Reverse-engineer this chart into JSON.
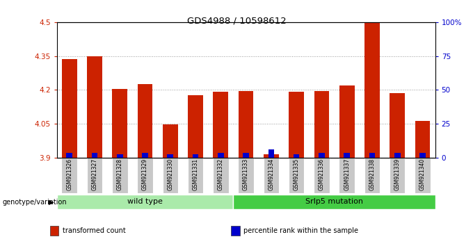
{
  "title": "GDS4988 / 10598612",
  "samples": [
    "GSM921326",
    "GSM921327",
    "GSM921328",
    "GSM921329",
    "GSM921330",
    "GSM921331",
    "GSM921332",
    "GSM921333",
    "GSM921334",
    "GSM921335",
    "GSM921336",
    "GSM921337",
    "GSM921338",
    "GSM921339",
    "GSM921340"
  ],
  "red_values": [
    4.335,
    4.348,
    4.205,
    4.225,
    4.048,
    4.175,
    4.19,
    4.195,
    3.915,
    4.19,
    4.195,
    4.218,
    4.495,
    4.185,
    4.062
  ],
  "blue_heights": [
    0.02,
    0.02,
    0.015,
    0.02,
    0.015,
    0.015,
    0.02,
    0.02,
    0.035,
    0.015,
    0.02,
    0.02,
    0.02,
    0.02,
    0.02
  ],
  "y_min": 3.9,
  "y_max": 4.5,
  "y_ticks": [
    3.9,
    4.05,
    4.2,
    4.35,
    4.5
  ],
  "y_tick_labels": [
    "3.9",
    "4.05",
    "4.2",
    "4.35",
    "4.5"
  ],
  "right_y_ticks": [
    0,
    25,
    50,
    75,
    100
  ],
  "right_y_tick_labels": [
    "0",
    "25",
    "50",
    "75",
    "100%"
  ],
  "groups": [
    {
      "label": "wild type",
      "start": 0,
      "end": 7
    },
    {
      "label": "Srlp5 mutation",
      "start": 7,
      "end": 15
    }
  ],
  "group_colors": [
    "#aaeaaa",
    "#44cc44"
  ],
  "group_label_prefix": "genotype/variation",
  "legend_items": [
    {
      "color": "#CC2200",
      "label": "transformed count"
    },
    {
      "color": "#0000CC",
      "label": "percentile rank within the sample"
    }
  ],
  "bar_color_red": "#CC2200",
  "bar_color_blue": "#0000CC",
  "tick_label_bg": "#C8C8C8"
}
